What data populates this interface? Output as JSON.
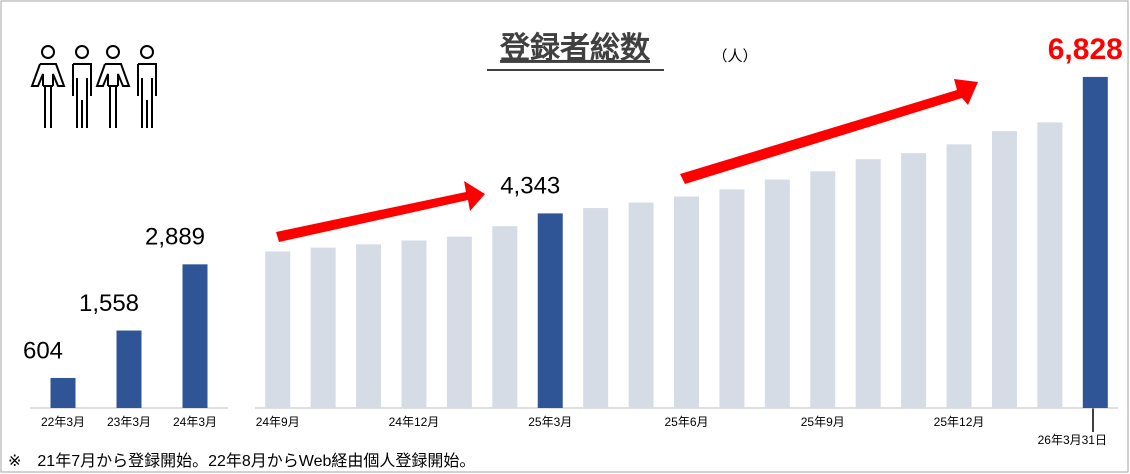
{
  "title": "登録者総数",
  "unit": "（人）",
  "note": "※　21年7月から登録開始。22年8月からWeb経由個人登録開始。",
  "chart_data": [
    {
      "type": "bar",
      "categories": [
        "22年3月",
        "23年3月",
        "24年3月"
      ],
      "values": [
        604,
        1558,
        2889
      ],
      "value_labels": [
        "604",
        "1,558",
        "2,889"
      ],
      "colors": [
        "#2f5597",
        "#2f5597",
        "#2f5597"
      ],
      "ylim": [
        0,
        7400
      ]
    },
    {
      "type": "bar",
      "categories": [
        "24年9月",
        null,
        null,
        "24年12月",
        null,
        null,
        "25年3月",
        null,
        null,
        "25年6月",
        null,
        null,
        "25年9月",
        null,
        null,
        "25年12月",
        null,
        null,
        "26年3月31日"
      ],
      "values": [
        3650,
        3720,
        3780,
        3850,
        3920,
        4110,
        4343,
        4440,
        4540,
        4650,
        4780,
        4960,
        5110,
        5330,
        5440,
        5600,
        5840,
        6000,
        6828
      ],
      "value_labels": [
        null,
        null,
        null,
        null,
        null,
        null,
        "4,343",
        null,
        null,
        null,
        null,
        null,
        null,
        null,
        null,
        null,
        null,
        null,
        "6,828"
      ],
      "colors": [
        "#d6dce5",
        "#d6dce5",
        "#d6dce5",
        "#d6dce5",
        "#d6dce5",
        "#d6dce5",
        "#2f5597",
        "#d6dce5",
        "#d6dce5",
        "#d6dce5",
        "#d6dce5",
        "#d6dce5",
        "#d6dce5",
        "#d6dce5",
        "#d6dce5",
        "#d6dce5",
        "#d6dce5",
        "#d6dce5",
        "#2f5597"
      ],
      "ylim": [
        800,
        7500
      ]
    }
  ]
}
